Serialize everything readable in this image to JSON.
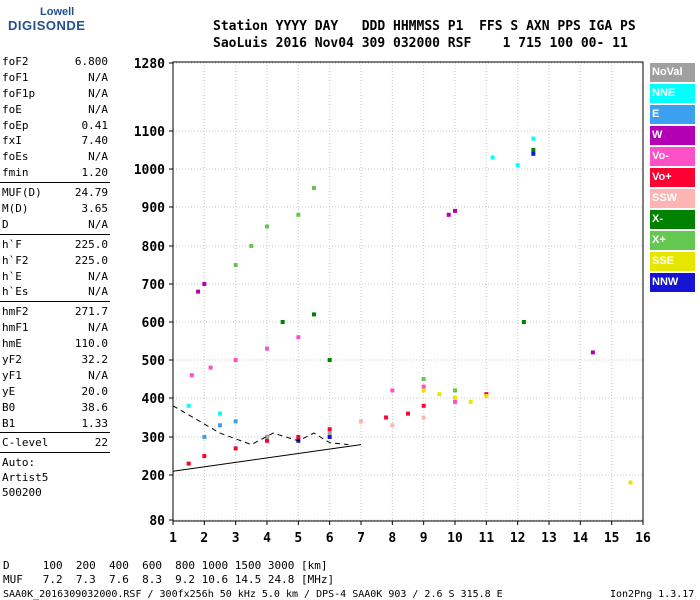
{
  "logo": {
    "line1": "Lowell",
    "line2": "DIGISONDE"
  },
  "header": {
    "row1": "Station YYYY DAY   DDD HHMMSS P1  FFS S AXN PPS IGA PS",
    "row2": "SaoLuis 2016 Nov04 309 032000 RSF    1 715 100 00- 11"
  },
  "params": {
    "group1": [
      {
        "k": "foF2",
        "v": "6.800"
      },
      {
        "k": "foF1",
        "v": "N/A"
      },
      {
        "k": "foF1p",
        "v": "N/A"
      },
      {
        "k": "foE",
        "v": "N/A"
      },
      {
        "k": "foEp",
        "v": "0.41"
      },
      {
        "k": "fxI",
        "v": "7.40"
      },
      {
        "k": "foEs",
        "v": "N/A"
      },
      {
        "k": "fmin",
        "v": "1.20"
      }
    ],
    "group2": [
      {
        "k": "MUF(D)",
        "v": "24.79"
      },
      {
        "k": "M(D)",
        "v": "3.65"
      },
      {
        "k": "D",
        "v": "N/A"
      }
    ],
    "group3": [
      {
        "k": "h`F",
        "v": "225.0"
      },
      {
        "k": "h`F2",
        "v": "225.0"
      },
      {
        "k": "h`E",
        "v": "N/A"
      },
      {
        "k": "h`Es",
        "v": "N/A"
      }
    ],
    "group4": [
      {
        "k": "hmF2",
        "v": "271.7"
      },
      {
        "k": "hmF1",
        "v": "N/A"
      },
      {
        "k": "hmE",
        "v": "110.0"
      },
      {
        "k": "yF2",
        "v": "32.2"
      },
      {
        "k": "yF1",
        "v": "N/A"
      },
      {
        "k": "yE",
        "v": "20.0"
      },
      {
        "k": "B0",
        "v": "38.6"
      },
      {
        "k": "B1",
        "v": "1.33"
      }
    ],
    "group5": [
      {
        "k": "C-level",
        "v": "22"
      }
    ],
    "autoscaling": [
      "Auto:",
      "Artist5",
      "500200"
    ]
  },
  "legend": [
    {
      "label": "NoVal",
      "color": "#a0a0a0"
    },
    {
      "label": "NNE",
      "color": "#00ffff"
    },
    {
      "label": "E",
      "color": "#3c9ff0"
    },
    {
      "label": "W",
      "color": "#b400b4"
    },
    {
      "label": "Vo-",
      "color": "#ff50c8"
    },
    {
      "label": "Vo+",
      "color": "#ff0032"
    },
    {
      "label": "SSW",
      "color": "#ffb4b4"
    },
    {
      "label": "X-",
      "color": "#008200"
    },
    {
      "label": "X+",
      "color": "#64c850"
    },
    {
      "label": "SSE",
      "color": "#e6e600"
    },
    {
      "label": "NNW",
      "color": "#1414d2"
    }
  ],
  "chart_data": {
    "type": "scatter",
    "title": "",
    "xlabel": "",
    "ylabel": "",
    "xlim": [
      1,
      16
    ],
    "ylim": [
      80,
      1280
    ],
    "x_ticks": [
      1,
      2,
      3,
      4,
      5,
      6,
      7,
      8,
      9,
      10,
      11,
      12,
      13,
      14,
      15,
      16
    ],
    "y_ticks": [
      80,
      200,
      300,
      400,
      500,
      600,
      700,
      800,
      900,
      1000,
      1100,
      1280
    ],
    "y_scale": "nonlinear (ionogram virtual height)",
    "grid": true,
    "series": [
      {
        "name": "Vo+",
        "color": "#ff0032",
        "points": [
          [
            1.5,
            230
          ],
          [
            2,
            250
          ],
          [
            3,
            270
          ],
          [
            4,
            290
          ],
          [
            5,
            300
          ],
          [
            6,
            320
          ],
          [
            7,
            340
          ],
          [
            7.8,
            350
          ],
          [
            8.5,
            360
          ],
          [
            9,
            380
          ],
          [
            10,
            400
          ],
          [
            11,
            410
          ]
        ]
      },
      {
        "name": "Vo-",
        "color": "#ff50c8",
        "points": [
          [
            1.6,
            460
          ],
          [
            2.2,
            480
          ],
          [
            3,
            500
          ],
          [
            4,
            530
          ],
          [
            5,
            560
          ],
          [
            8,
            420
          ],
          [
            9,
            430
          ],
          [
            10,
            390
          ]
        ]
      },
      {
        "name": "X+",
        "color": "#64c850",
        "points": [
          [
            3,
            750
          ],
          [
            3.5,
            800
          ],
          [
            4,
            850
          ],
          [
            5,
            880
          ],
          [
            5.5,
            950
          ],
          [
            9,
            450
          ],
          [
            10,
            420
          ]
        ]
      },
      {
        "name": "X-",
        "color": "#008200",
        "points": [
          [
            4.5,
            600
          ],
          [
            5.5,
            620
          ],
          [
            6,
            500
          ],
          [
            12.2,
            600
          ],
          [
            12.5,
            1050
          ]
        ]
      },
      {
        "name": "SSE",
        "color": "#e6e600",
        "points": [
          [
            9,
            420
          ],
          [
            9.5,
            410
          ],
          [
            10,
            400
          ],
          [
            10.5,
            390
          ],
          [
            11,
            405
          ],
          [
            15.6,
            180
          ]
        ]
      },
      {
        "name": "W",
        "color": "#b400b4",
        "points": [
          [
            1.8,
            680
          ],
          [
            2,
            700
          ],
          [
            9.8,
            880
          ],
          [
            10,
            890
          ],
          [
            14.4,
            520
          ]
        ]
      },
      {
        "name": "NNE",
        "color": "#00ffff",
        "points": [
          [
            1.5,
            380
          ],
          [
            2.5,
            360
          ],
          [
            11.2,
            1030
          ],
          [
            12,
            1010
          ],
          [
            12.5,
            1080
          ]
        ]
      },
      {
        "name": "E",
        "color": "#3c9ff0",
        "points": [
          [
            2,
            300
          ],
          [
            2.5,
            330
          ],
          [
            3,
            340
          ]
        ]
      },
      {
        "name": "NNW",
        "color": "#1414d2",
        "points": [
          [
            5,
            290
          ],
          [
            6,
            300
          ],
          [
            12.5,
            1040
          ]
        ]
      },
      {
        "name": "SSW",
        "color": "#ffb4b4",
        "points": [
          [
            7,
            340
          ],
          [
            8,
            330
          ],
          [
            9,
            350
          ]
        ]
      },
      {
        "name": "NoVal",
        "color": "#a0a0a0",
        "points": [
          [
            4,
            300
          ],
          [
            6,
            310
          ]
        ]
      }
    ],
    "traces": {
      "solid_line": [
        [
          1,
          210
        ],
        [
          7,
          280
        ]
      ],
      "dashed_line": [
        [
          1,
          380
        ],
        [
          2.5,
          310
        ],
        [
          3.5,
          280
        ],
        [
          4.2,
          310
        ],
        [
          5,
          290
        ],
        [
          5.5,
          310
        ],
        [
          6,
          285
        ],
        [
          6.6,
          280
        ]
      ]
    }
  },
  "footer": {
    "d_row": "D     100  200  400  600  800 1000 1500 3000 [km]",
    "muf_row": "MUF   7.2  7.3  7.6  8.3  9.2 10.6 14.5 24.8 [MHz]",
    "file_row": "SAA0K_2016309032000.RSF / 300fx256h 50 kHz 5.0 km / DPS-4 SAA0K 903 / 2.6 S 315.8 E",
    "version": "Ion2Png 1.3.17"
  }
}
